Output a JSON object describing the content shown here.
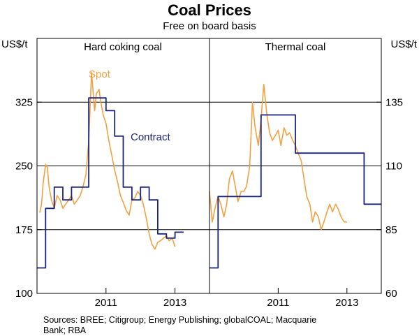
{
  "chart_data": {
    "type": "line",
    "title": "Coal Prices",
    "subtitle": "Free on board basis",
    "left_unit": "US$/t",
    "right_unit": "US$/t",
    "sources_line1": "Sources: BREE; Citigroup; Energy Publishing; globalCOAL; Macquarie",
    "sources_line2": "Bank; RBA",
    "x_range": [
      2009.0,
      2014.0
    ],
    "x_ticks": [
      2011,
      2013
    ],
    "x_tick_labels": [
      "2011",
      "2013"
    ],
    "panels": [
      {
        "title": "Hard coking coal",
        "axis_side": "left",
        "ylim": [
          100,
          400
        ],
        "y_ticks": [
          100,
          175,
          250,
          325
        ],
        "y_tick_labels": [
          "100",
          "175",
          "250",
          "325"
        ],
        "series": [
          {
            "name": "Spot",
            "color": "#f5a040",
            "x": [
              2009.08,
              2009.13,
              2009.18,
              2009.25,
              2009.3,
              2009.35,
              2009.42,
              2009.5,
              2009.58,
              2009.67,
              2009.75,
              2009.83,
              2009.92,
              2010.0,
              2010.08,
              2010.17,
              2010.25,
              2010.33,
              2010.42,
              2010.5,
              2010.58,
              2010.67,
              2010.72,
              2010.8,
              2010.85,
              2010.92,
              2011.0,
              2011.08,
              2011.17,
              2011.25,
              2011.33,
              2011.42,
              2011.5,
              2011.58,
              2011.67,
              2011.75,
              2011.83,
              2011.92,
              2012.0,
              2012.08,
              2012.17,
              2012.25,
              2012.33,
              2012.42,
              2012.5,
              2012.58,
              2012.67,
              2012.75,
              2012.83,
              2012.92,
              2013.0
            ],
            "values": [
              195,
              205,
              230,
              252,
              248,
              225,
              210,
              200,
              215,
              210,
              200,
              205,
              210,
              215,
              205,
              210,
              215,
              225,
              240,
              280,
              360,
              315,
              335,
              340,
              325,
              310,
              300,
              280,
              262,
              245,
              232,
              215,
              207,
              198,
              192,
              210,
              212,
              220,
              215,
              205,
              188,
              170,
              158,
              152,
              160,
              162,
              165,
              168,
              162,
              165,
              155
            ]
          },
          {
            "name": "Contract",
            "color": "#1a237e",
            "x": [
              2009.0,
              2009.25,
              2009.25,
              2009.5,
              2009.5,
              2009.75,
              2009.75,
              2010.0,
              2010.0,
              2010.25,
              2010.25,
              2010.5,
              2010.5,
              2010.75,
              2010.75,
              2011.0,
              2011.0,
              2011.25,
              2011.25,
              2011.5,
              2011.5,
              2011.75,
              2011.75,
              2012.0,
              2012.0,
              2012.25,
              2012.25,
              2012.5,
              2012.5,
              2012.75,
              2012.75,
              2013.0,
              2013.0,
              2013.25
            ],
            "values": [
              130,
              130,
              200,
              200,
              225,
              225,
              210,
              210,
              225,
              225,
              225,
              225,
              330,
              330,
              330,
              330,
              315,
              315,
              285,
              285,
              225,
              225,
              210,
              210,
              225,
              225,
              210,
              210,
              170,
              170,
              165,
              165,
              172,
              172
            ]
          }
        ]
      },
      {
        "title": "Thermal coal",
        "axis_side": "right",
        "ylim": [
          60,
          160
        ],
        "y_ticks": [
          60,
          85,
          110,
          135
        ],
        "y_tick_labels": [
          "60",
          "85",
          "110",
          "135"
        ],
        "series": [
          {
            "name": "Spot",
            "color": "#f5a040",
            "x": [
              2009.0,
              2009.08,
              2009.17,
              2009.25,
              2009.33,
              2009.42,
              2009.5,
              2009.58,
              2009.67,
              2009.75,
              2009.83,
              2009.92,
              2010.0,
              2010.08,
              2010.17,
              2010.25,
              2010.33,
              2010.42,
              2010.5,
              2010.58,
              2010.67,
              2010.75,
              2010.83,
              2010.92,
              2011.0,
              2011.08,
              2011.17,
              2011.25,
              2011.33,
              2011.42,
              2011.5,
              2011.58,
              2011.67,
              2011.75,
              2011.83,
              2011.92,
              2012.0,
              2012.08,
              2012.17,
              2012.25,
              2012.33,
              2012.42,
              2012.5,
              2012.58,
              2012.67,
              2012.75,
              2012.83,
              2012.92,
              2013.0
            ],
            "values": [
              100,
              88,
              94,
              98,
              95,
              90,
              95,
              105,
              108,
              102,
              96,
              100,
              100,
              102,
              110,
              135,
              125,
              118,
              128,
              142,
              130,
              123,
              120,
              122,
              124,
              118,
              125,
              122,
              123,
              120,
              118,
              115,
              112,
              105,
              98,
              95,
              88,
              92,
              90,
              85,
              88,
              92,
              95,
              92,
              95,
              93,
              90,
              88,
              88
            ]
          },
          {
            "name": "Contract",
            "color": "#1a237e",
            "x": [
              2009.0,
              2009.25,
              2009.25,
              2010.25,
              2010.25,
              2010.5,
              2010.5,
              2011.5,
              2011.5,
              2012.5,
              2012.5,
              2013.5,
              2013.5,
              2014.0
            ],
            "values": [
              70,
              70,
              98,
              98,
              98,
              98,
              130,
              130,
              115,
              115,
              115,
              115,
              95,
              95
            ]
          }
        ]
      }
    ],
    "annotations": {
      "spot_label": "Spot",
      "contract_label": "Contract"
    }
  }
}
